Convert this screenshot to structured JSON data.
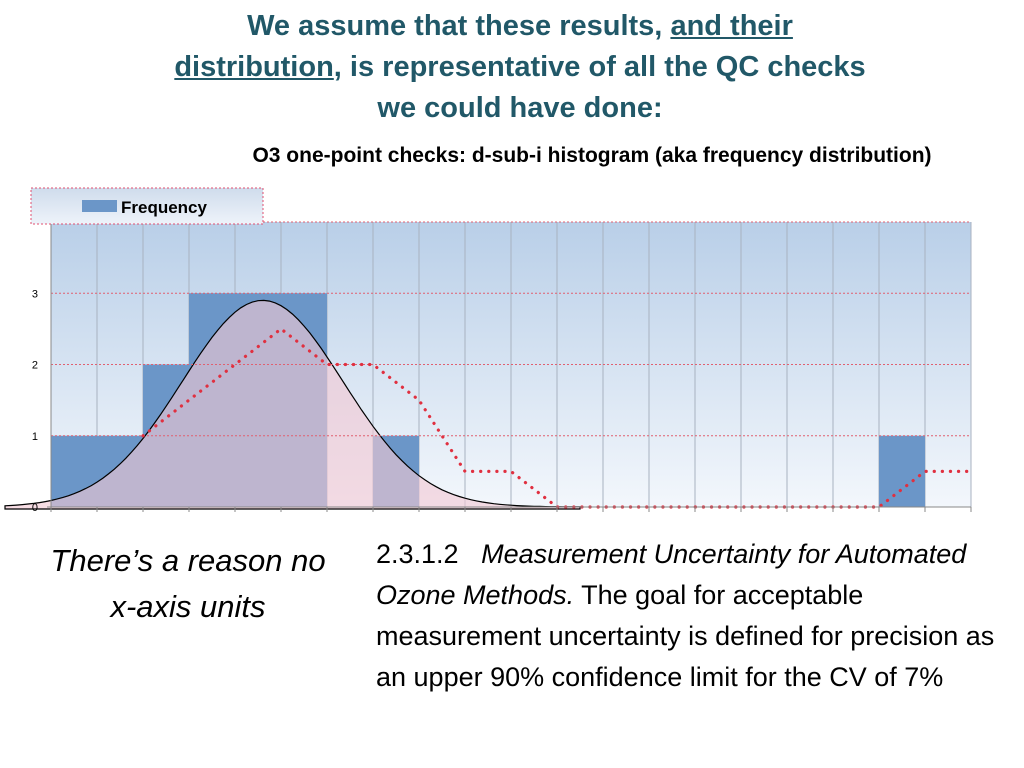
{
  "slide": {
    "title_part1": "We assume that these results, ",
    "title_underline1": "and their",
    "title_underline2": "distribution",
    "title_part2": ", is representative of all the QC checks we could have done:",
    "left_note": "There’s a reason no x-axis units",
    "body_number": "2.3.1.2",
    "body_italic": "Measurement Uncertainty for Automated Ozone Methods.",
    "body_text": " The goal for acceptable measurement uncertainty is defined for precision as an upper 90% confidence limit for the CV of 7%"
  },
  "chart_data": {
    "type": "bar",
    "title": "O3 one-point checks:  d-sub-i histogram (aka frequency distribution)",
    "xlabel": "",
    "ylabel": "",
    "ylim": [
      0,
      4
    ],
    "y_ticks": [
      "0",
      "1",
      "2",
      "3"
    ],
    "grid": true,
    "legend_position": "top-left",
    "series": [
      {
        "name": "Frequency",
        "values": [
          1,
          1,
          2,
          3,
          3,
          3,
          0,
          1,
          0,
          0,
          0,
          0,
          0,
          0,
          0,
          0,
          0,
          0,
          1,
          0
        ],
        "color": "#6b96c8"
      }
    ],
    "moving_average": [
      null,
      null,
      1,
      1.5,
      2,
      2.5,
      2,
      2,
      1.5,
      0.5,
      0.5,
      0,
      0,
      0,
      0,
      0,
      0,
      0,
      0,
      0.5,
      0.5
    ],
    "normal_curve": {
      "mean": 4.6,
      "sd": 1.75,
      "peak": 2.9,
      "x_from": -1,
      "x_to": 11.5
    },
    "colors": {
      "bar": "#6b96c8",
      "bar_overlap": "#8c8cb8",
      "pink_fill": "#f2c8d4",
      "curve_line": "#000000",
      "dotted": "#e03040",
      "grid": "#e06070"
    }
  }
}
